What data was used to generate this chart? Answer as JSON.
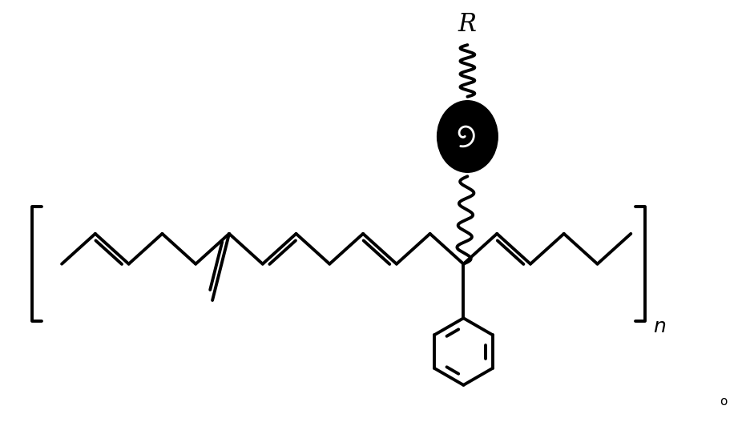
{
  "bg_color": "#ffffff",
  "line_color": "#000000",
  "line_width": 2.8,
  "figure_width": 9.41,
  "figure_height": 5.27,
  "R_label": "R",
  "n_label": "n",
  "o_label": "o"
}
